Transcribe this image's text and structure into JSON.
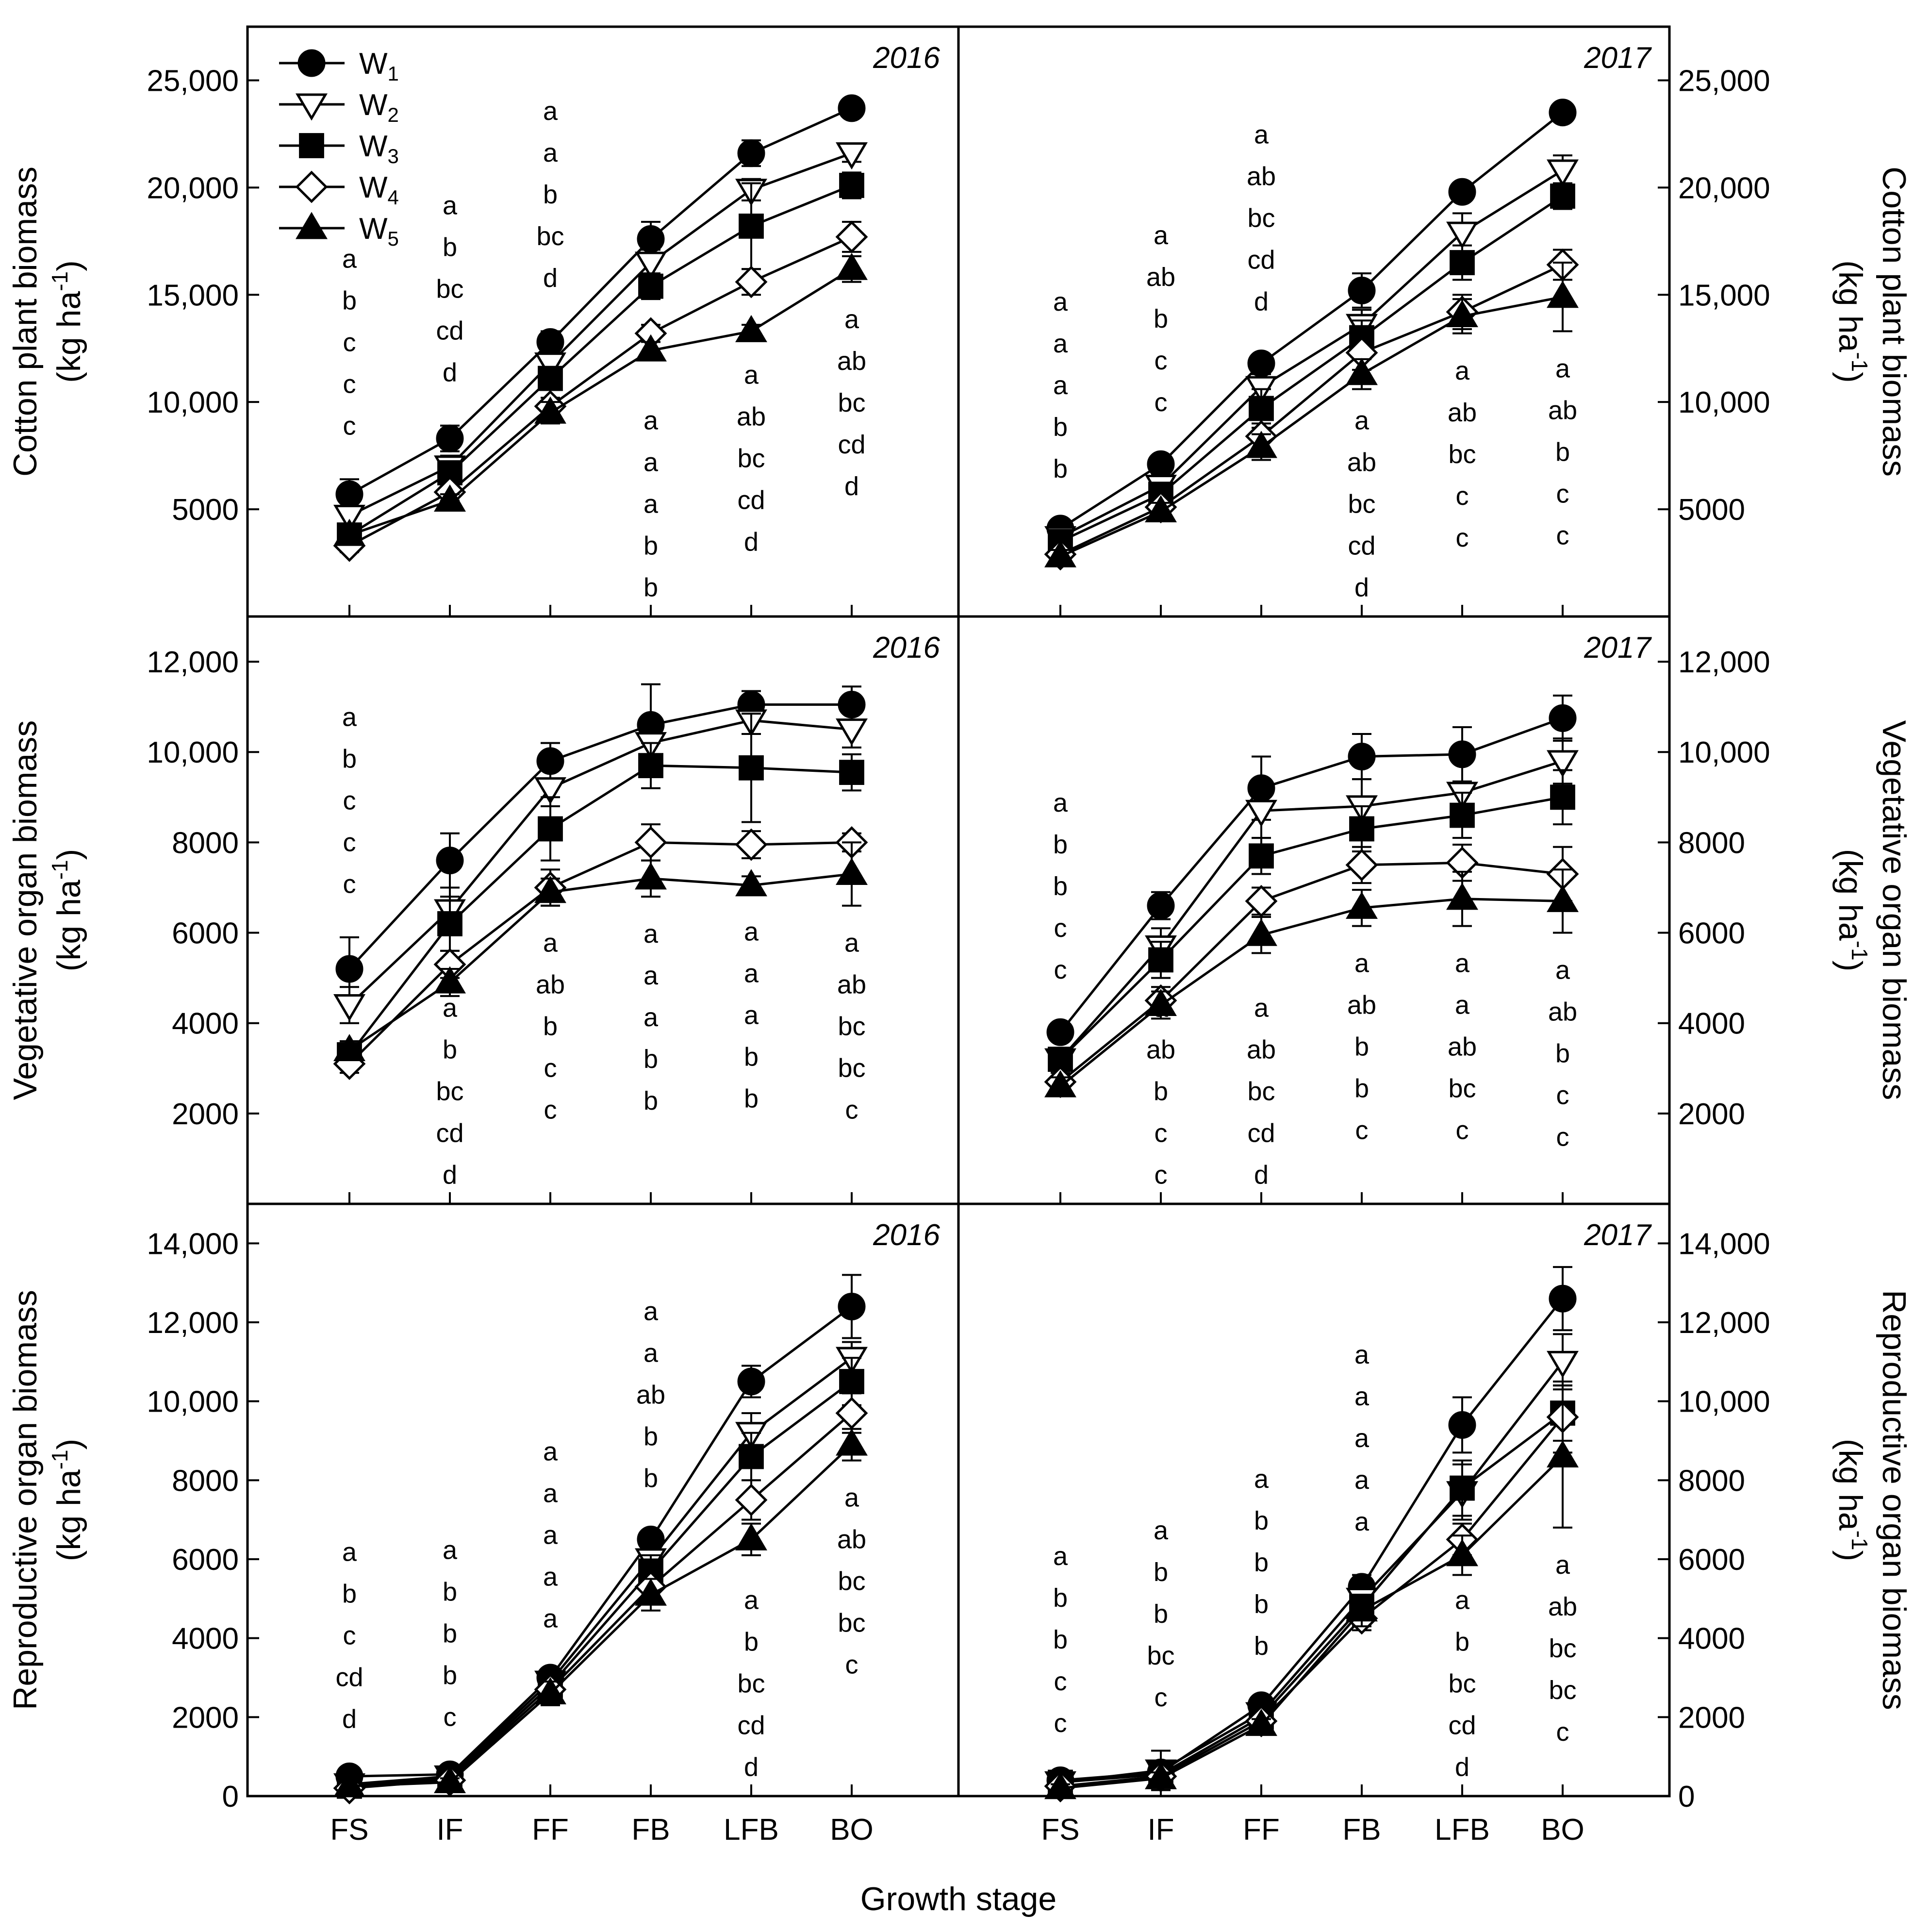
{
  "figure": {
    "xlabel": "Growth stage",
    "legend": [
      {
        "name": "W",
        "sub": "1",
        "marker": "circle-filled"
      },
      {
        "name": "W",
        "sub": "2",
        "marker": "triangle-down-open"
      },
      {
        "name": "W",
        "sub": "3",
        "marker": "square-filled"
      },
      {
        "name": "W",
        "sub": "4",
        "marker": "diamond-open"
      },
      {
        "name": "W",
        "sub": "5",
        "marker": "triangle-up-filled"
      }
    ],
    "colors": {
      "line": "#000000",
      "open_fill": "#ffffff",
      "filled": "#000000"
    }
  },
  "rows": [
    {
      "ylabel_main": "Cotton plant biomass",
      "ylabel_unit": "(kg ha",
      "ylabel_exp": "-1",
      "ylabel_close": ")",
      "ylim": [
        0,
        27500
      ],
      "ticks": [
        5000,
        10000,
        15000,
        20000,
        25000
      ],
      "tick_labels": [
        "5000",
        "10,000",
        "15,000",
        "20,000",
        "25,000"
      ]
    },
    {
      "ylabel_main": "Vegetative organ biomass",
      "ylabel_unit": "(kg ha",
      "ylabel_exp": "-1",
      "ylabel_close": ")",
      "ylim": [
        0,
        13000
      ],
      "ticks": [
        2000,
        4000,
        6000,
        8000,
        10000,
        12000
      ],
      "tick_labels": [
        "2000",
        "4000",
        "6000",
        "8000",
        "10,000",
        "12,000"
      ]
    },
    {
      "ylabel_main": "Reproductive organ biomass",
      "ylabel_unit": "(kg ha",
      "ylabel_exp": "-1",
      "ylabel_close": ")",
      "ylim": [
        0,
        15000
      ],
      "ticks": [
        0,
        2000,
        4000,
        6000,
        8000,
        10000,
        12000,
        14000
      ],
      "tick_labels": [
        "0",
        "2000",
        "4000",
        "6000",
        "8000",
        "10,000",
        "12,000",
        "14,000"
      ]
    }
  ],
  "chart_data": [
    {
      "type": "line",
      "title": "2016",
      "ylabel": "Cotton plant biomass (kg ha-1)",
      "xlabel": "Growth stage",
      "categories": [
        "FS",
        "IF",
        "FF",
        "FB",
        "LFB",
        "BO"
      ],
      "ylim": [
        0,
        27500
      ],
      "series": [
        {
          "name": "W1",
          "values": [
            5700,
            8300,
            12800,
            17600,
            21600,
            23700
          ],
          "err": [
            700,
            600,
            500,
            800,
            600,
            300
          ]
        },
        {
          "name": "W2",
          "values": [
            4700,
            7000,
            11800,
            16500,
            19900,
            21600
          ],
          "err": [
            400,
            500,
            500,
            600,
            500,
            400
          ]
        },
        {
          "name": "W3",
          "values": [
            3800,
            6700,
            11100,
            15400,
            18200,
            20100
          ],
          "err": [
            400,
            400,
            500,
            600,
            2000,
            600
          ]
        },
        {
          "name": "W4",
          "values": [
            3300,
            5800,
            9800,
            13200,
            15600,
            17700
          ],
          "err": [
            300,
            400,
            400,
            400,
            600,
            700
          ]
        },
        {
          "name": "W5",
          "values": [
            3800,
            5400,
            9500,
            12400,
            13300,
            16200
          ],
          "err": [
            300,
            300,
            500,
            400,
            300,
            600
          ]
        }
      ],
      "letters": [
        [
          "a",
          "b",
          "c",
          "c",
          "c"
        ],
        [
          "a",
          "b",
          "bc",
          "cd",
          "d"
        ],
        [
          "a",
          "a",
          "b",
          "bc",
          "d"
        ],
        [
          "a",
          "a",
          "a",
          "b",
          "b"
        ],
        [
          "a",
          "ab",
          "bc",
          "cd",
          "d"
        ],
        [
          "a",
          "ab",
          "bc",
          "cd",
          "d"
        ]
      ]
    },
    {
      "type": "line",
      "title": "2017",
      "ylabel": "Cotton plant biomass (kg ha-1)",
      "xlabel": "Growth stage",
      "categories": [
        "FS",
        "IF",
        "FF",
        "FB",
        "LFB",
        "BO"
      ],
      "ylim": [
        0,
        27500
      ],
      "series": [
        {
          "name": "W1",
          "values": [
            4100,
            7100,
            11800,
            15200,
            19800,
            23500
          ],
          "err": [
            300,
            400,
            400,
            800,
            300,
            300
          ]
        },
        {
          "name": "W2",
          "values": [
            3700,
            6100,
            10700,
            13600,
            17900,
            20800
          ],
          "err": [
            300,
            500,
            600,
            700,
            900,
            700
          ]
        },
        {
          "name": "W3",
          "values": [
            3500,
            5700,
            9700,
            13000,
            16500,
            19600
          ],
          "err": [
            300,
            500,
            900,
            800,
            800,
            600
          ]
        },
        {
          "name": "W4",
          "values": [
            2900,
            5100,
            8400,
            12300,
            14200,
            16400
          ],
          "err": [
            300,
            400,
            600,
            800,
            800,
            700
          ]
        },
        {
          "name": "W5",
          "values": [
            2800,
            4900,
            7900,
            11300,
            14000,
            14900
          ],
          "err": [
            300,
            400,
            600,
            700,
            800,
            1600
          ]
        }
      ],
      "letters": [
        [
          "a",
          "a",
          "a",
          "b",
          "b"
        ],
        [
          "a",
          "ab",
          "b",
          "c",
          "c"
        ],
        [
          "a",
          "ab",
          "bc",
          "cd",
          "d"
        ],
        [
          "a",
          "ab",
          "bc",
          "cd",
          "d"
        ],
        [
          "a",
          "ab",
          "bc",
          "c",
          "c"
        ],
        [
          "a",
          "ab",
          "b",
          "c",
          "c"
        ]
      ]
    },
    {
      "type": "line",
      "title": "2016",
      "ylabel": "Vegetative organ biomass (kg ha-1)",
      "xlabel": "Growth stage",
      "categories": [
        "FS",
        "IF",
        "FF",
        "FB",
        "LFB",
        "BO"
      ],
      "ylim": [
        0,
        13000
      ],
      "series": [
        {
          "name": "W1",
          "values": [
            5200,
            7600,
            9800,
            10600,
            11050,
            11050
          ],
          "err": [
            700,
            600,
            400,
            900,
            300,
            400
          ]
        },
        {
          "name": "W2",
          "values": [
            4400,
            6500,
            9200,
            10200,
            10700,
            10500
          ],
          "err": [
            400,
            500,
            400,
            500,
            300,
            400
          ]
        },
        {
          "name": "W3",
          "values": [
            3300,
            6200,
            8300,
            9700,
            9650,
            9550
          ],
          "err": [
            200,
            600,
            700,
            500,
            1200,
            400
          ]
        },
        {
          "name": "W4",
          "values": [
            3100,
            5300,
            7000,
            8000,
            7950,
            8000
          ],
          "err": [
            200,
            300,
            400,
            400,
            300,
            200
          ]
        },
        {
          "name": "W5",
          "values": [
            3400,
            4900,
            6900,
            7200,
            7050,
            7300
          ],
          "err": [
            200,
            300,
            300,
            400,
            200,
            700
          ]
        }
      ],
      "letters": [
        [
          "a",
          "b",
          "c",
          "c",
          "c"
        ],
        [
          "a",
          "b",
          "bc",
          "cd",
          "d"
        ],
        [
          "a",
          "ab",
          "b",
          "c",
          "c"
        ],
        [
          "a",
          "a",
          "a",
          "b",
          "b"
        ],
        [
          "a",
          "a",
          "a",
          "b",
          "b"
        ],
        [
          "a",
          "ab",
          "bc",
          "bc",
          "c"
        ]
      ]
    },
    {
      "type": "line",
      "title": "2017",
      "ylabel": "Vegetative organ biomass (kg ha-1)",
      "xlabel": "Growth stage",
      "categories": [
        "FS",
        "IF",
        "FF",
        "FB",
        "LFB",
        "BO"
      ],
      "ylim": [
        0,
        13000
      ],
      "series": [
        {
          "name": "W1",
          "values": [
            3800,
            6600,
            9200,
            9900,
            9950,
            10750
          ],
          "err": [
            200,
            300,
            700,
            500,
            600,
            500
          ]
        },
        {
          "name": "W2",
          "values": [
            3200,
            5700,
            8700,
            8800,
            9100,
            9800
          ],
          "err": [
            200,
            400,
            600,
            600,
            700,
            500
          ]
        },
        {
          "name": "W3",
          "values": [
            3200,
            5400,
            7700,
            8300,
            8600,
            9000
          ],
          "err": [
            200,
            400,
            400,
            500,
            500,
            600
          ]
        },
        {
          "name": "W4",
          "values": [
            2700,
            4500,
            6700,
            7500,
            7550,
            7300
          ],
          "err": [
            200,
            300,
            300,
            400,
            400,
            600
          ]
        },
        {
          "name": "W5",
          "values": [
            2600,
            4400,
            5950,
            6550,
            6750,
            6700
          ],
          "err": [
            200,
            300,
            400,
            400,
            600,
            700
          ]
        }
      ],
      "letters": [
        [
          "a",
          "b",
          "b",
          "c",
          "c"
        ],
        [
          "a",
          "ab",
          "b",
          "c",
          "c"
        ],
        [
          "a",
          "ab",
          "bc",
          "cd",
          "d"
        ],
        [
          "a",
          "ab",
          "b",
          "b",
          "c"
        ],
        [
          "a",
          "a",
          "ab",
          "bc",
          "c"
        ],
        [
          "a",
          "ab",
          "b",
          "c",
          "c"
        ]
      ]
    },
    {
      "type": "line",
      "title": "2016",
      "ylabel": "Reproductive organ biomass (kg ha-1)",
      "xlabel": "Growth stage",
      "categories": [
        "FS",
        "IF",
        "FF",
        "FB",
        "LFB",
        "BO"
      ],
      "ylim": [
        0,
        15000
      ],
      "series": [
        {
          "name": "W1",
          "values": [
            500,
            550,
            3000,
            6500,
            10500,
            12400
          ],
          "err": [
            100,
            100,
            150,
            200,
            400,
            800
          ]
        },
        {
          "name": "W2",
          "values": [
            300,
            500,
            2900,
            6000,
            9200,
            11100
          ],
          "err": [
            100,
            100,
            150,
            300,
            500,
            400
          ]
        },
        {
          "name": "W3",
          "values": [
            250,
            450,
            2800,
            5700,
            8600,
            10500
          ],
          "err": [
            100,
            100,
            150,
            400,
            600,
            600
          ]
        },
        {
          "name": "W4",
          "values": [
            200,
            400,
            2700,
            5300,
            7500,
            9700
          ],
          "err": [
            100,
            100,
            200,
            400,
            500,
            500
          ]
        },
        {
          "name": "W5",
          "values": [
            250,
            350,
            2600,
            5100,
            6500,
            8900
          ],
          "err": [
            100,
            100,
            300,
            400,
            400,
            400
          ]
        }
      ],
      "letters": [
        [
          "a",
          "b",
          "c",
          "cd",
          "d"
        ],
        [
          "a",
          "b",
          "b",
          "b",
          "c"
        ],
        [
          "a",
          "a",
          "a",
          "a",
          "a"
        ],
        [
          "a",
          "a",
          "ab",
          "b",
          "b"
        ],
        [
          "a",
          "b",
          "bc",
          "cd",
          "d"
        ],
        [
          "a",
          "ab",
          "bc",
          "bc",
          "c"
        ]
      ]
    },
    {
      "type": "line",
      "title": "2017",
      "ylabel": "Reproductive organ biomass (kg ha-1)",
      "xlabel": "Growth stage",
      "categories": [
        "FS",
        "IF",
        "FF",
        "FB",
        "LFB",
        "BO"
      ],
      "ylim": [
        0,
        15000
      ],
      "series": [
        {
          "name": "W1",
          "values": [
            400,
            600,
            2300,
            5300,
            9400,
            12600
          ],
          "err": [
            100,
            200,
            150,
            300,
            700,
            800
          ]
        },
        {
          "name": "W2",
          "values": [
            350,
            650,
            2100,
            5000,
            7700,
            11000
          ],
          "err": [
            100,
            500,
            150,
            300,
            700,
            700
          ]
        },
        {
          "name": "W3",
          "values": [
            350,
            550,
            2000,
            4800,
            7800,
            9700
          ],
          "err": [
            100,
            200,
            150,
            300,
            700,
            700
          ]
        },
        {
          "name": "W4",
          "values": [
            250,
            500,
            1900,
            4500,
            6500,
            9600
          ],
          "err": [
            100,
            150,
            150,
            300,
            400,
            900
          ]
        },
        {
          "name": "W5",
          "values": [
            200,
            450,
            1800,
            4700,
            6100,
            8600
          ],
          "err": [
            100,
            150,
            150,
            400,
            500,
            1800
          ]
        }
      ],
      "letters": [
        [
          "a",
          "b",
          "b",
          "c",
          "c"
        ],
        [
          "a",
          "b",
          "b",
          "bc",
          "c"
        ],
        [
          "a",
          "b",
          "b",
          "b",
          "b"
        ],
        [
          "a",
          "a",
          "a",
          "a",
          "a"
        ],
        [
          "a",
          "b",
          "bc",
          "cd",
          "d"
        ],
        [
          "a",
          "ab",
          "bc",
          "bc",
          "c"
        ]
      ]
    }
  ]
}
